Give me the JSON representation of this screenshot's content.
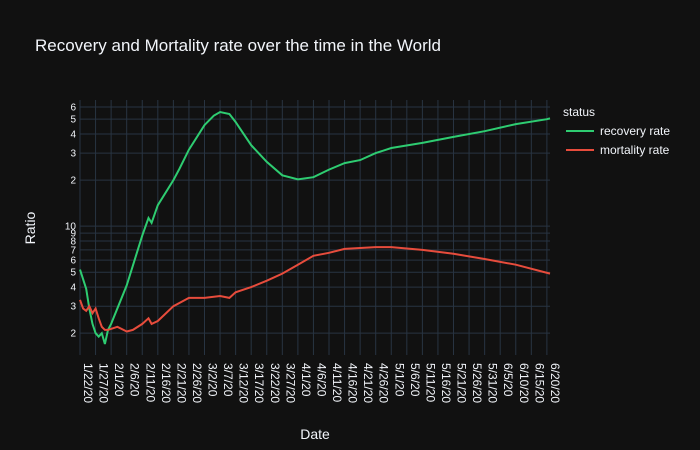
{
  "chart_data": {
    "type": "line",
    "title": "Recovery and Mortality rate over the time in the World",
    "x_label": "Date",
    "y_label": "Ratio",
    "legend_title": "status",
    "legend_position": "right",
    "log_y": true,
    "grid": true,
    "xlim": [
      "2020-01-22",
      "2020-06-21"
    ],
    "ylim": [
      1.44,
      66.7
    ],
    "xticks": [
      {
        "value": "2020-01-22",
        "label": "1/22/20"
      },
      {
        "value": "2020-01-27",
        "label": "1/27/20"
      },
      {
        "value": "2020-02-01",
        "label": "2/1/20"
      },
      {
        "value": "2020-02-06",
        "label": "2/6/20"
      },
      {
        "value": "2020-02-11",
        "label": "2/11/20"
      },
      {
        "value": "2020-02-16",
        "label": "2/16/20"
      },
      {
        "value": "2020-02-21",
        "label": "2/21/20"
      },
      {
        "value": "2020-02-26",
        "label": "2/26/20"
      },
      {
        "value": "2020-03-02",
        "label": "3/2/20"
      },
      {
        "value": "2020-03-07",
        "label": "3/7/20"
      },
      {
        "value": "2020-03-12",
        "label": "3/12/20"
      },
      {
        "value": "2020-03-17",
        "label": "3/17/20"
      },
      {
        "value": "2020-03-22",
        "label": "3/22/20"
      },
      {
        "value": "2020-03-27",
        "label": "3/27/20"
      },
      {
        "value": "2020-04-01",
        "label": "4/1/20"
      },
      {
        "value": "2020-04-06",
        "label": "4/6/20"
      },
      {
        "value": "2020-04-11",
        "label": "4/11/20"
      },
      {
        "value": "2020-04-16",
        "label": "4/16/20"
      },
      {
        "value": "2020-04-21",
        "label": "4/21/20"
      },
      {
        "value": "2020-04-26",
        "label": "4/26/20"
      },
      {
        "value": "2020-05-01",
        "label": "5/1/20"
      },
      {
        "value": "2020-05-06",
        "label": "5/6/20"
      },
      {
        "value": "2020-05-11",
        "label": "5/11/20"
      },
      {
        "value": "2020-05-16",
        "label": "5/16/20"
      },
      {
        "value": "2020-05-21",
        "label": "5/21/20"
      },
      {
        "value": "2020-05-26",
        "label": "5/26/20"
      },
      {
        "value": "2020-05-31",
        "label": "5/31/20"
      },
      {
        "value": "2020-06-05",
        "label": "6/5/20"
      },
      {
        "value": "2020-06-10",
        "label": "6/10/20"
      },
      {
        "value": "2020-06-15",
        "label": "6/15/20"
      },
      {
        "value": "2020-06-20",
        "label": "6/20/20"
      }
    ],
    "yticks": [
      2,
      3,
      4,
      5,
      6,
      7,
      8,
      9,
      10,
      {
        "value": 20,
        "label": "2"
      },
      {
        "value": 30,
        "label": "3"
      },
      {
        "value": 40,
        "label": "4"
      },
      {
        "value": 50,
        "label": "5"
      },
      {
        "value": 60,
        "label": "6"
      }
    ],
    "series": [
      {
        "name": "recovery rate",
        "color": "#2ecc71",
        "x": [
          "2020-01-22",
          "2020-01-23",
          "2020-01-24",
          "2020-01-25",
          "2020-01-26",
          "2020-01-27",
          "2020-01-28",
          "2020-01-29",
          "2020-01-30",
          "2020-01-31",
          "2020-02-01",
          "2020-02-06",
          "2020-02-11",
          "2020-02-13",
          "2020-02-14",
          "2020-02-16",
          "2020-02-21",
          "2020-02-23",
          "2020-02-26",
          "2020-03-02",
          "2020-03-05",
          "2020-03-07",
          "2020-03-10",
          "2020-03-12",
          "2020-03-17",
          "2020-03-22",
          "2020-03-27",
          "2020-04-01",
          "2020-04-06",
          "2020-04-11",
          "2020-04-16",
          "2020-04-21",
          "2020-04-26",
          "2020-05-01",
          "2020-05-11",
          "2020-05-21",
          "2020-05-31",
          "2020-06-10",
          "2020-06-20",
          "2020-06-21"
        ],
        "values": [
          5.2,
          4.5,
          3.9,
          2.9,
          2.3,
          2.0,
          1.9,
          2.0,
          1.7,
          2.1,
          2.3,
          4.1,
          8.7,
          11.3,
          10.5,
          13.7,
          20,
          23.8,
          31.6,
          45.7,
          52.7,
          55.7,
          54,
          47.9,
          33.8,
          26.3,
          21.5,
          20.2,
          20.9,
          23.4,
          25.8,
          27,
          30,
          32.4,
          35,
          38.3,
          41.7,
          46.4,
          50,
          50.6
        ]
      },
      {
        "name": "mortality rate",
        "color": "#e74c3c",
        "x": [
          "2020-01-22",
          "2020-01-23",
          "2020-01-24",
          "2020-01-25",
          "2020-01-26",
          "2020-01-27",
          "2020-01-28",
          "2020-01-29",
          "2020-01-30",
          "2020-01-31",
          "2020-02-03",
          "2020-02-06",
          "2020-02-08",
          "2020-02-11",
          "2020-02-13",
          "2020-02-14",
          "2020-02-16",
          "2020-02-21",
          "2020-02-26",
          "2020-03-02",
          "2020-03-07",
          "2020-03-10",
          "2020-03-12",
          "2020-03-17",
          "2020-03-22",
          "2020-03-27",
          "2020-04-01",
          "2020-04-06",
          "2020-04-11",
          "2020-04-16",
          "2020-04-21",
          "2020-04-26",
          "2020-05-01",
          "2020-05-11",
          "2020-05-21",
          "2020-05-31",
          "2020-06-10",
          "2020-06-21"
        ],
        "values": [
          3.3,
          2.9,
          2.8,
          3.0,
          2.7,
          2.9,
          2.5,
          2.2,
          2.1,
          2.1,
          2.2,
          2.05,
          2.1,
          2.3,
          2.5,
          2.3,
          2.4,
          3.0,
          3.4,
          3.4,
          3.5,
          3.4,
          3.7,
          4.0,
          4.4,
          4.9,
          5.6,
          6.4,
          6.7,
          7.1,
          7.2,
          7.3,
          7.3,
          7.0,
          6.6,
          6.1,
          5.6,
          4.9
        ]
      }
    ]
  }
}
